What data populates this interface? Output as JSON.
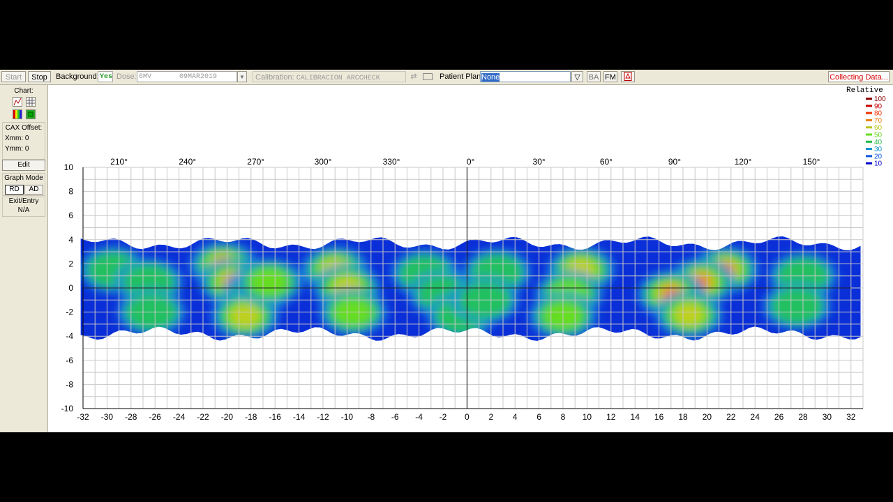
{
  "toolbar": {
    "start_label": "Start",
    "stop_label": "Stop",
    "background_label": "Background:",
    "background_value": "Yes",
    "dose_label": "Dose:",
    "dose_file": "6MV",
    "dose_date": "09MAR2019",
    "calibration_label": "Calibration:",
    "calibration_value": "CALIBRACION ARCCHECK",
    "patient_plan_label": "Patient Plan:",
    "patient_plan_value": "None",
    "ba_label": "BA",
    "fm_label": "FM",
    "status_label": "Collecting Data..."
  },
  "left_panel": {
    "chart_label": "Chart:",
    "cax_offset_label": "CAX Offset:",
    "xmm_label": "Xmm: 0",
    "ymm_label": "Ymm: 0",
    "edit_label": "Edit",
    "graph_mode_label": "Graph Mode",
    "rd_label": "RD",
    "ad_label": "AD",
    "exit_entry_label": "Exit/Entry",
    "exit_entry_value": "N/A",
    "icons": [
      "chart-type-icon",
      "grid-icon",
      "color-bars-icon",
      "colormap-icon"
    ]
  },
  "chart_data": {
    "type": "heatmap",
    "title": "",
    "legend_title": "Relative",
    "legend": [
      {
        "label": "100",
        "color": "#8b0000"
      },
      {
        "label": "90",
        "color": "#c80000"
      },
      {
        "label": "80",
        "color": "#ee3300"
      },
      {
        "label": "70",
        "color": "#e87f10"
      },
      {
        "label": "60",
        "color": "#b8c520"
      },
      {
        "label": "50",
        "color": "#66dd22"
      },
      {
        "label": "40",
        "color": "#22bb44"
      },
      {
        "label": "30",
        "color": "#0a8fd0"
      },
      {
        "label": "20",
        "color": "#0a55e0"
      },
      {
        "label": "10",
        "color": "#0000cc"
      }
    ],
    "xlim": [
      -32,
      33
    ],
    "ylim": [
      -10,
      10
    ],
    "x_ticks": [
      -32,
      -30,
      -28,
      -26,
      -24,
      -22,
      -20,
      -18,
      -16,
      -14,
      -12,
      -10,
      -8,
      -6,
      -4,
      -2,
      0,
      2,
      4,
      6,
      8,
      10,
      12,
      14,
      16,
      18,
      20,
      22,
      24,
      26,
      28,
      30,
      32
    ],
    "y_ticks": [
      10,
      8,
      6,
      4,
      2,
      0,
      -2,
      -4,
      -6,
      -8,
      -10
    ],
    "angle_labels": [
      {
        "label": "210°",
        "x": -29
      },
      {
        "label": "240°",
        "x": -23.3
      },
      {
        "label": "270°",
        "x": -17.6
      },
      {
        "label": "300°",
        "x": -12
      },
      {
        "label": "330°",
        "x": -6.3
      },
      {
        "label": "0°",
        "x": 0.3
      },
      {
        "label": "30°",
        "x": 6
      },
      {
        "label": "60°",
        "x": 11.6
      },
      {
        "label": "90°",
        "x": 17.3
      },
      {
        "label": "120°",
        "x": 23
      },
      {
        "label": "150°",
        "x": 28.7
      }
    ],
    "grid": true,
    "legend_position": "top-right",
    "band": {
      "x_range": [
        -32.2,
        32.8
      ],
      "y_top": 3.7,
      "y_bottom": -3.8
    },
    "hotspots": [
      {
        "x": -29.5,
        "y": 1.5,
        "level": 45
      },
      {
        "x": -26.5,
        "y": 0.5,
        "level": 52
      },
      {
        "x": -26.3,
        "y": -2,
        "level": 48
      },
      {
        "x": -20.3,
        "y": 1.9,
        "level": 85
      },
      {
        "x": -19.5,
        "y": 0.5,
        "level": 78
      },
      {
        "x": -17.5,
        "y": -0.3,
        "level": 72
      },
      {
        "x": -18.5,
        "y": -2.3,
        "level": 70
      },
      {
        "x": -16.5,
        "y": 0.5,
        "level": 60
      },
      {
        "x": -11,
        "y": 1.5,
        "level": 70
      },
      {
        "x": -10,
        "y": 0,
        "level": 65
      },
      {
        "x": -9.5,
        "y": -2,
        "level": 58
      },
      {
        "x": -3.5,
        "y": 1.2,
        "level": 52
      },
      {
        "x": -2,
        "y": -0.5,
        "level": 48
      },
      {
        "x": -0.5,
        "y": -2.3,
        "level": 45
      },
      {
        "x": 2.5,
        "y": 1.3,
        "level": 50
      },
      {
        "x": 1.5,
        "y": -1,
        "level": 45
      },
      {
        "x": 9.5,
        "y": 1.5,
        "level": 72
      },
      {
        "x": 8.5,
        "y": -0.5,
        "level": 62
      },
      {
        "x": 8,
        "y": -2.3,
        "level": 58
      },
      {
        "x": 21.5,
        "y": 1.5,
        "level": 85
      },
      {
        "x": 19.5,
        "y": 0.5,
        "level": 78
      },
      {
        "x": 17,
        "y": -0.5,
        "level": 75
      },
      {
        "x": 18.5,
        "y": -2.2,
        "level": 70
      },
      {
        "x": 28,
        "y": 1,
        "level": 50
      },
      {
        "x": 27.5,
        "y": -1.5,
        "level": 48
      }
    ]
  }
}
